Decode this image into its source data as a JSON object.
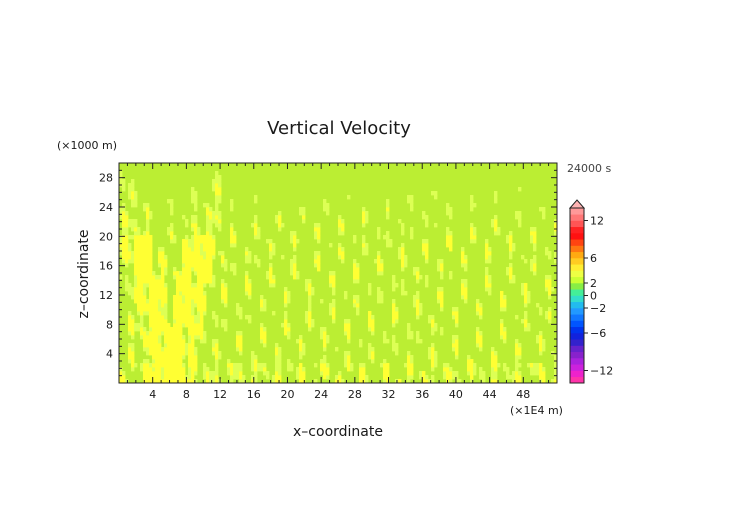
{
  "chart_data": {
    "type": "heatmap",
    "title": "Vertical Velocity",
    "xlabel": "x–coordinate",
    "ylabel": "z–coordinate",
    "x_unit": "(×1E4 m)",
    "y_unit": "(×1000 m)",
    "time_label": "24000 s",
    "x_range": [
      0,
      52
    ],
    "y_range": [
      0,
      30
    ],
    "x_ticks": [
      4,
      8,
      12,
      16,
      20,
      24,
      28,
      32,
      36,
      40,
      44,
      48
    ],
    "y_ticks": [
      4,
      8,
      12,
      16,
      20,
      24,
      28
    ],
    "x_tick_labels": [
      "4",
      "8",
      "12",
      "16",
      "20",
      "24",
      "28",
      "32",
      "36",
      "40",
      "44",
      "48"
    ],
    "y_tick_labels": [
      "4",
      "8",
      "12",
      "16",
      "20",
      "24",
      "28"
    ],
    "grid": false,
    "field_description": "wave pattern of alternating near-zero (green) and weak positive (yellow) vertical velocity across the domain; strong V-shaped positive region centred near x=6, z<20",
    "colorbar": {
      "placement": "right",
      "extend_top": true,
      "levels": [
        -14,
        -13,
        -12,
        -11,
        -10,
        -9,
        -8,
        -7,
        -6,
        -5,
        -4,
        -3,
        -2,
        -1,
        0,
        1,
        2,
        3,
        4,
        5,
        6,
        7,
        8,
        9,
        10,
        11,
        12,
        13,
        14
      ],
      "colors": [
        "#ff33aa",
        "#ee22cc",
        "#cc22dd",
        "#aa22dd",
        "#8822cc",
        "#6622cc",
        "#3322cc",
        "#1122dd",
        "#0033ee",
        "#0055ff",
        "#1177ff",
        "#2299ff",
        "#22bbee",
        "#33ddcc",
        "#44ee99",
        "#88ee44",
        "#ccff33",
        "#eeff44",
        "#ffee33",
        "#ffcc22",
        "#ffaa11",
        "#ff7711",
        "#ff4411",
        "#ff1111",
        "#ff2222",
        "#ff5555",
        "#ff7777",
        "#ff9999"
      ],
      "labels": [
        {
          "value": 12,
          "text": "12"
        },
        {
          "value": 6,
          "text": "6"
        },
        {
          "value": 2,
          "text": "2"
        },
        {
          "value": 0,
          "text": "0"
        },
        {
          "value": -2,
          "text": "−2"
        },
        {
          "value": -6,
          "text": "−6"
        },
        {
          "value": -12,
          "text": "−12"
        }
      ],
      "extend_color": "#ffb3b3"
    }
  }
}
